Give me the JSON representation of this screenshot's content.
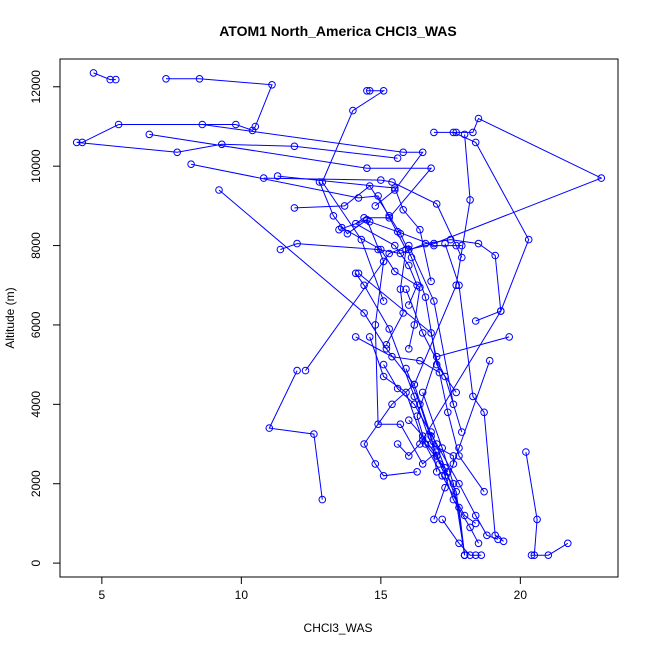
{
  "chart_data": {
    "type": "line",
    "title": "ATOM1 North_America CHCl3_WAS",
    "xlabel": "CHCl3_WAS",
    "ylabel": "Altitude (m)",
    "xlim": [
      3.5,
      23.5
    ],
    "ylim": [
      -350,
      12700
    ],
    "x_ticks": [
      5,
      10,
      15,
      20
    ],
    "y_ticks": [
      0,
      2000,
      4000,
      6000,
      8000,
      10000,
      12000
    ],
    "grid": false,
    "legend": "none",
    "marker": "open-circle",
    "color": "#0000ff",
    "series": [
      {
        "x": [
          4.7,
          5.3,
          5.5
        ],
        "y": [
          12350,
          12180,
          12180
        ]
      },
      {
        "x": [
          7.3,
          8.5,
          11.1,
          10.5,
          10.4,
          9.8,
          5.6,
          4.3,
          4.1,
          7.7,
          9.3,
          11.9,
          15.6
        ],
        "y": [
          12200,
          12200,
          12050,
          11000,
          10900,
          11050,
          11050,
          10600,
          10600,
          10350,
          10550,
          10500,
          10200
        ]
      },
      {
        "x": [
          8.6,
          15.8,
          16.5,
          15.5,
          14.8
        ],
        "y": [
          11050,
          10350,
          10350,
          9400,
          9000
        ]
      },
      {
        "x": [
          6.7,
          14.5,
          16.8,
          15.3,
          14.4,
          14.1,
          15.5,
          16.0,
          16.3,
          16.0
        ],
        "y": [
          10800,
          9950,
          9950,
          8700,
          8700,
          8550,
          8000,
          7500,
          7000,
          6500
        ]
      },
      {
        "x": [
          8.2,
          14.2,
          14.9,
          15.9,
          15.7,
          15.8,
          15.2
        ],
        "y": [
          10050,
          9200,
          9250,
          7900,
          6900,
          6300,
          5500
        ]
      },
      {
        "x": [
          9.2,
          14.4,
          15.2,
          16.2,
          16.8,
          17.0
        ],
        "y": [
          9400,
          6300,
          5400,
          4500,
          3200,
          2300
        ]
      },
      {
        "x": [
          10.8,
          15.0,
          15.4,
          17.0,
          17.7,
          17.9
        ],
        "y": [
          9700,
          9650,
          9600,
          9050,
          8000,
          7700
        ]
      },
      {
        "x": [
          11.3,
          15.5,
          15.8,
          16.4,
          16.8
        ],
        "y": [
          9750,
          9450,
          8900,
          8400,
          7100
        ]
      },
      {
        "x": [
          11.9,
          13.7,
          14.6,
          15.3,
          15.7,
          16.1,
          16.6,
          17.0,
          17.7
        ],
        "y": [
          8950,
          9000,
          9500,
          8750,
          8300,
          7700,
          6700,
          5000,
          4300
        ]
      },
      {
        "x": [
          11.4,
          12.0,
          14.9,
          15.7,
          16.6,
          17.5,
          18.5,
          19.1,
          19.3,
          18.4
        ],
        "y": [
          7900,
          8050,
          7900,
          7800,
          8050,
          8150,
          8050,
          7750,
          6350,
          6100
        ]
      },
      {
        "x": [
          12.8,
          13.3,
          13.8,
          14.5,
          14.6,
          15.6,
          16.9,
          17.9
        ],
        "y": [
          9600,
          8750,
          8300,
          8650,
          8600,
          8350,
          8000,
          8000
        ]
      },
      {
        "x": [
          13.6,
          15.0,
          15.5,
          16.4,
          16.2,
          16.0
        ],
        "y": [
          8450,
          7900,
          7350,
          6950,
          6000,
          5400
        ]
      },
      {
        "x": [
          14.5,
          14.6,
          15.1,
          14.0,
          12.9,
          14.3,
          15.1
        ],
        "y": [
          11900,
          11900,
          11900,
          11400,
          9600,
          8150,
          6600
        ]
      },
      {
        "x": [
          16.9,
          17.7,
          18.3,
          18.5,
          22.9,
          16.9,
          16.0
        ],
        "y": [
          10850,
          10850,
          10850,
          11200,
          9700,
          8050,
          7900
        ]
      },
      {
        "x": [
          17.6,
          18.4,
          20.3,
          19.3,
          16.4,
          16.0,
          15.6
        ],
        "y": [
          10850,
          10600,
          8150,
          6350,
          3000,
          2700,
          3000
        ]
      },
      {
        "x": [
          18.0,
          18.2,
          17.7,
          16.2,
          15.4,
          14.4,
          14.8,
          15.1,
          16.3
        ],
        "y": [
          10800,
          9150,
          7000,
          4500,
          4000,
          3000,
          2500,
          2200,
          2300
        ]
      },
      {
        "x": [
          17.3,
          17.8,
          18.3,
          18.7,
          19.1,
          19.4
        ],
        "y": [
          8050,
          7000,
          4200,
          3800,
          700,
          550
        ]
      },
      {
        "x": [
          13.5,
          14.5,
          15.1,
          14.8,
          14.9,
          15.7,
          16.5,
          17.0,
          17.1
        ],
        "y": [
          8400,
          8650,
          7600,
          6000,
          3500,
          3500,
          2500,
          2800,
          2500
        ]
      },
      {
        "x": [
          14.1,
          14.4,
          15.3,
          16.2,
          16.8,
          17.6,
          17.6
        ],
        "y": [
          7300,
          7000,
          5900,
          4200,
          3000,
          2700,
          2500
        ]
      },
      {
        "x": [
          14.6,
          15.1,
          15.9,
          16.5,
          17.2,
          18.0,
          18.4
        ],
        "y": [
          5700,
          4700,
          4300,
          3100,
          2200,
          1200,
          1000
        ]
      },
      {
        "x": [
          15.1,
          15.6,
          16.2,
          17.0,
          17.8,
          18.4,
          18.8,
          19.2
        ],
        "y": [
          5000,
          4400,
          4000,
          3000,
          2000,
          1200,
          700,
          600
        ]
      },
      {
        "x": [
          12.0,
          11.0,
          12.6,
          12.9
        ],
        "y": [
          4850,
          3400,
          3250,
          1600
        ]
      },
      {
        "x": [
          12.3,
          15.3,
          16.0,
          16.9,
          17.6
        ],
        "y": [
          4850,
          7800,
          8000,
          6600,
          4000
        ]
      },
      {
        "x": [
          15.9,
          16.5,
          17.3,
          17.9
        ],
        "y": [
          6900,
          5800,
          4700,
          3300
        ]
      },
      {
        "x": [
          19.6,
          17.0,
          16.3,
          16.6,
          17.4
        ],
        "y": [
          5700,
          5200,
          3700,
          3000,
          2300
        ]
      },
      {
        "x": [
          18.9,
          17.8,
          17.3,
          16.9
        ],
        "y": [
          5100,
          2900,
          1900,
          1100
        ]
      },
      {
        "x": [
          16.0,
          16.5,
          17.0,
          17.3,
          17.6,
          18.2,
          18.5
        ],
        "y": [
          3600,
          3200,
          2700,
          2200,
          1600,
          900,
          500
        ]
      },
      {
        "x": [
          20.2,
          20.6,
          20.5,
          20.4,
          21.0,
          21.7
        ],
        "y": [
          2800,
          1100,
          200,
          200,
          200,
          500
        ]
      },
      {
        "x": [
          17.2,
          17.8,
          18.2,
          18.4,
          18.6
        ],
        "y": [
          1100,
          500,
          200,
          200,
          200
        ]
      },
      {
        "x": [
          15.9,
          16.4,
          17.0,
          17.7,
          18.0
        ],
        "y": [
          4900,
          4000,
          2700,
          1800,
          200
        ]
      },
      {
        "x": [
          16.5,
          17.2,
          17.6,
          18.0
        ],
        "y": [
          4300,
          2900,
          2000,
          200
        ]
      },
      {
        "x": [
          16.8,
          17.3,
          17.8,
          18.0
        ],
        "y": [
          3300,
          2400,
          1400,
          200
        ]
      },
      {
        "x": [
          14.1,
          15.4,
          16.4,
          17.1
        ],
        "y": [
          5700,
          5200,
          5100,
          4800
        ]
      },
      {
        "x": [
          14.2,
          16.8,
          17.4,
          17.8,
          18.7
        ],
        "y": [
          7300,
          5800,
          3800,
          2700,
          1800
        ]
      }
    ]
  }
}
